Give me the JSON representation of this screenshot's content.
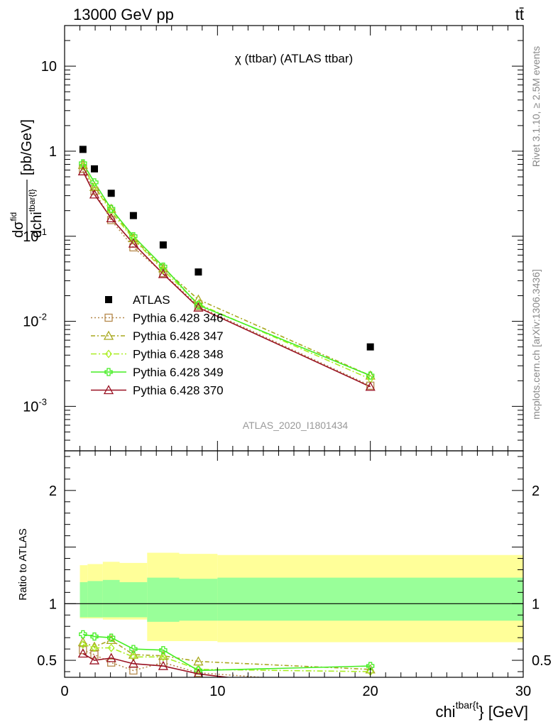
{
  "header": {
    "left": "13000 GeV pp",
    "right": "tt̄"
  },
  "side_labels": {
    "rivet": "Rivet 3.1.10, ≥ 2.5M events",
    "mcplots": "mcplots.cern.ch [arXiv:1306.3436]"
  },
  "colors": {
    "data": "#000000",
    "s346": "#b5884b",
    "s347": "#a8a81e",
    "s348": "#aaee22",
    "s349": "#44ee22",
    "s370": "#991122",
    "band_outer": "#ffff99",
    "band_inner": "#99ff99",
    "watermark": "#999999"
  },
  "chart_data": [
    {
      "type": "line",
      "title": "χ (ttbar) (ATLAS ttbar)",
      "ylabel": "dσ^fid / dchi^tbar{t} [pb/GeV]",
      "ylabel_parts": {
        "d1": "d",
        "sigma": "σ",
        "fid": "fid",
        "d2": "dchi",
        "sup": "tbar{t}",
        "unit": "[pb/GeV]"
      },
      "yscale": "log",
      "ylim": [
        0.0003,
        30
      ],
      "xlim": [
        0,
        30
      ],
      "yticks": [
        {
          "v": 0.001,
          "base": "10",
          "exp": "-3"
        },
        {
          "v": 0.01,
          "base": "10",
          "exp": "-2"
        },
        {
          "v": 0.1,
          "base": "10",
          "exp": "-1"
        },
        {
          "v": 1,
          "base": "1",
          "exp": ""
        },
        {
          "v": 10,
          "base": "10",
          "exp": ""
        }
      ],
      "watermark": "ATLAS_2020_I1801434",
      "legend_position": "bottom-left",
      "x": [
        1.2,
        1.95,
        3.05,
        4.5,
        6.45,
        8.75,
        20.0
      ],
      "series": [
        {
          "name": "ATLAS",
          "key": "data",
          "marker": "square",
          "values": [
            1.05,
            0.62,
            0.32,
            0.175,
            0.079,
            0.038,
            0.005
          ]
        },
        {
          "name": "Pythia 6.428 346",
          "key": "s346",
          "marker": "open-square",
          "dash": "2,3",
          "values": [
            0.62,
            0.34,
            0.155,
            0.074,
            0.037,
            0.015,
            0.00175
          ]
        },
        {
          "name": "Pythia 6.428 347",
          "key": "s347",
          "marker": "open-triangle",
          "dash": "6,3,2,3",
          "values": [
            0.69,
            0.38,
            0.21,
            0.095,
            0.042,
            0.018,
            0.0023
          ]
        },
        {
          "name": "Pythia 6.428 348",
          "key": "s348",
          "marker": "open-diamond",
          "dash": "8,3,2,3",
          "values": [
            0.66,
            0.38,
            0.195,
            0.093,
            0.04,
            0.016,
            0.0021
          ]
        },
        {
          "name": "Pythia 6.428 349",
          "key": "s349",
          "marker": "cross",
          "dash": "",
          "values": [
            0.72,
            0.43,
            0.21,
            0.1,
            0.044,
            0.0155,
            0.0023
          ]
        },
        {
          "name": "Pythia 6.428 370",
          "key": "s370",
          "marker": "open-triangle",
          "dash": "",
          "values": [
            0.58,
            0.31,
            0.163,
            0.082,
            0.036,
            0.0145,
            0.0017
          ]
        }
      ]
    },
    {
      "type": "line",
      "ylabel": "Ratio to ATLAS",
      "xlabel": "chi^tbar{t} [GeV]",
      "xlabel_parts": {
        "base": "chi",
        "sup": "tbar{t",
        "close": "}",
        "unit": "[GeV]"
      },
      "xlim": [
        0,
        30
      ],
      "ylim": [
        0.35,
        2.35
      ],
      "xticks": [
        0,
        10,
        20,
        30
      ],
      "yticks": [
        0.5,
        1,
        2
      ],
      "band_edges": [
        1.0,
        1.5,
        2.5,
        3.6,
        5.4,
        7.5,
        10.0,
        30.0
      ],
      "band_outer": [
        [
          0.87,
          1.34
        ],
        [
          0.87,
          1.35
        ],
        [
          0.86,
          1.37
        ],
        [
          0.86,
          1.36
        ],
        [
          0.67,
          1.45
        ],
        [
          0.67,
          1.44
        ],
        [
          0.66,
          1.43
        ]
      ],
      "band_inner": [
        [
          0.88,
          1.19
        ],
        [
          0.88,
          1.2
        ],
        [
          0.88,
          1.21
        ],
        [
          0.88,
          1.19
        ],
        [
          0.84,
          1.23
        ],
        [
          0.85,
          1.22
        ],
        [
          0.85,
          1.23
        ]
      ],
      "series": [
        {
          "key": "s346",
          "values": [
            0.59,
            0.55,
            0.48,
            0.41,
            0.48,
            0.39,
            0.28
          ]
        },
        {
          "key": "s347",
          "values": [
            0.66,
            0.62,
            0.68,
            0.55,
            0.54,
            0.49,
            0.42
          ]
        },
        {
          "key": "s348",
          "values": [
            0.64,
            0.61,
            0.61,
            0.53,
            0.53,
            0.42,
            0.4
          ]
        },
        {
          "key": "s349",
          "values": [
            0.73,
            0.71,
            0.7,
            0.6,
            0.59,
            0.41,
            0.45
          ]
        },
        {
          "key": "s370",
          "values": [
            0.56,
            0.5,
            0.52,
            0.47,
            0.45,
            0.38,
            0.2
          ]
        }
      ]
    }
  ]
}
